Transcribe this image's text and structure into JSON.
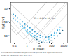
{
  "chart_data": {
    "type": "scatter",
    "log": true,
    "xlabel": "p [mbar]",
    "ylabel": "Eg [V/m]",
    "xlim": [
      0.05,
      2000
    ],
    "ylim": [
      3000,
      3000000
    ],
    "xticks": [
      0.1,
      1,
      10,
      100,
      1000
    ],
    "yticks": [
      {
        "value": 10000,
        "label": "10⁴"
      },
      {
        "value": 100000,
        "label": "10⁵"
      },
      {
        "value": 1000000,
        "label": "10⁶"
      }
    ],
    "grid": false,
    "annotations": [
      {
        "text": "E₀ = 0.68 × 10⁻²Vm",
        "x": 4,
        "y": 180000
      }
    ],
    "caption": [
      "Comparison between experimental points and approximations",
      "given by relations (16) and (17)"
    ],
    "series": [
      {
        "type": "line",
        "color": "#999999",
        "line_style": "solid",
        "x": [
          0.05,
          0.15,
          37.5
        ],
        "values": [
          36000,
          12000,
          3000000
        ]
      },
      {
        "type": "line",
        "color": "#aaaaaa",
        "line_style": "solid",
        "x": [
          0.05,
          0.6,
          327.272727
        ],
        "values": [
          66000,
          5500,
          3000000
        ]
      },
      {
        "type": "line",
        "color": "#bbbbbb",
        "line_style": "solid",
        "x": [
          0.05,
          2.5,
          2000
        ],
        "values": [
          160000,
          3200,
          2560000
        ]
      },
      {
        "type": "line",
        "color": "#cccccc",
        "line_style": "solid",
        "x": [
          0.05,
          7.333333,
          13.636364,
          2000
        ],
        "values": [
          440000,
          3000,
          3000,
          440000
        ]
      },
      {
        "type": "line",
        "color": "#aaaaaa",
        "line_style": "solid",
        "x": [
          0.05,
          150.1326
        ],
        "values": [
          2169720,
          3000
        ]
      },
      {
        "type": "line",
        "color": "#aaaaaa",
        "line_style": "solid",
        "x": [
          1.503561,
          1503.561
        ],
        "values": [
          3000,
          3000000
        ]
      },
      {
        "type": "scatter",
        "color": "#55bbee",
        "marker": "circle",
        "x": [
          0.08,
          0.12,
          0.18,
          0.28,
          0.45,
          0.7,
          1.1,
          1.8,
          2.8,
          4.5,
          7,
          12,
          20,
          35,
          60,
          100,
          180,
          300,
          500
        ],
        "values": [
          200000,
          150000,
          110000,
          80000,
          55000,
          40000,
          28000,
          20000,
          15000,
          11000,
          9000,
          7500,
          7000,
          7500,
          9000,
          12000,
          18000,
          28000,
          45000
        ]
      },
      {
        "type": "scatter",
        "color": "#3399cc",
        "marker": "circle",
        "x": [
          0.08,
          0.12,
          0.18,
          0.28,
          0.45,
          0.7,
          1.1,
          1.8,
          2.8,
          4.5,
          7,
          12,
          20,
          35,
          60,
          100,
          180,
          300
        ],
        "values": [
          400000,
          300000,
          220000,
          160000,
          110000,
          80000,
          55000,
          40000,
          28000,
          20000,
          15000,
          11000,
          9000,
          8000,
          8500,
          11000,
          16000,
          25000
        ]
      },
      {
        "type": "scatter",
        "color": "#77ddff",
        "marker": "circle",
        "x": [
          0.3,
          0.5,
          0.8,
          1.2,
          2.0,
          3.2,
          5,
          8,
          13,
          22,
          36,
          60,
          100,
          160,
          260,
          450,
          700
        ],
        "values": [
          50000,
          35000,
          24000,
          17000,
          12000,
          9000,
          7000,
          5500,
          4500,
          4200,
          4500,
          5500,
          7500,
          11000,
          17000,
          28000,
          45000
        ]
      },
      {
        "type": "scatter",
        "color": "#226688",
        "marker": "circle",
        "x": [
          1.0,
          1.5,
          2.5,
          4.0,
          6.5,
          10,
          16,
          26,
          42,
          70,
          110,
          180,
          300,
          500,
          800
        ],
        "values": [
          20000,
          14000,
          10000,
          7500,
          5500,
          4200,
          3400,
          3000,
          3000,
          3500,
          4500,
          6500,
          10000,
          16000,
          25000
        ]
      }
    ]
  }
}
